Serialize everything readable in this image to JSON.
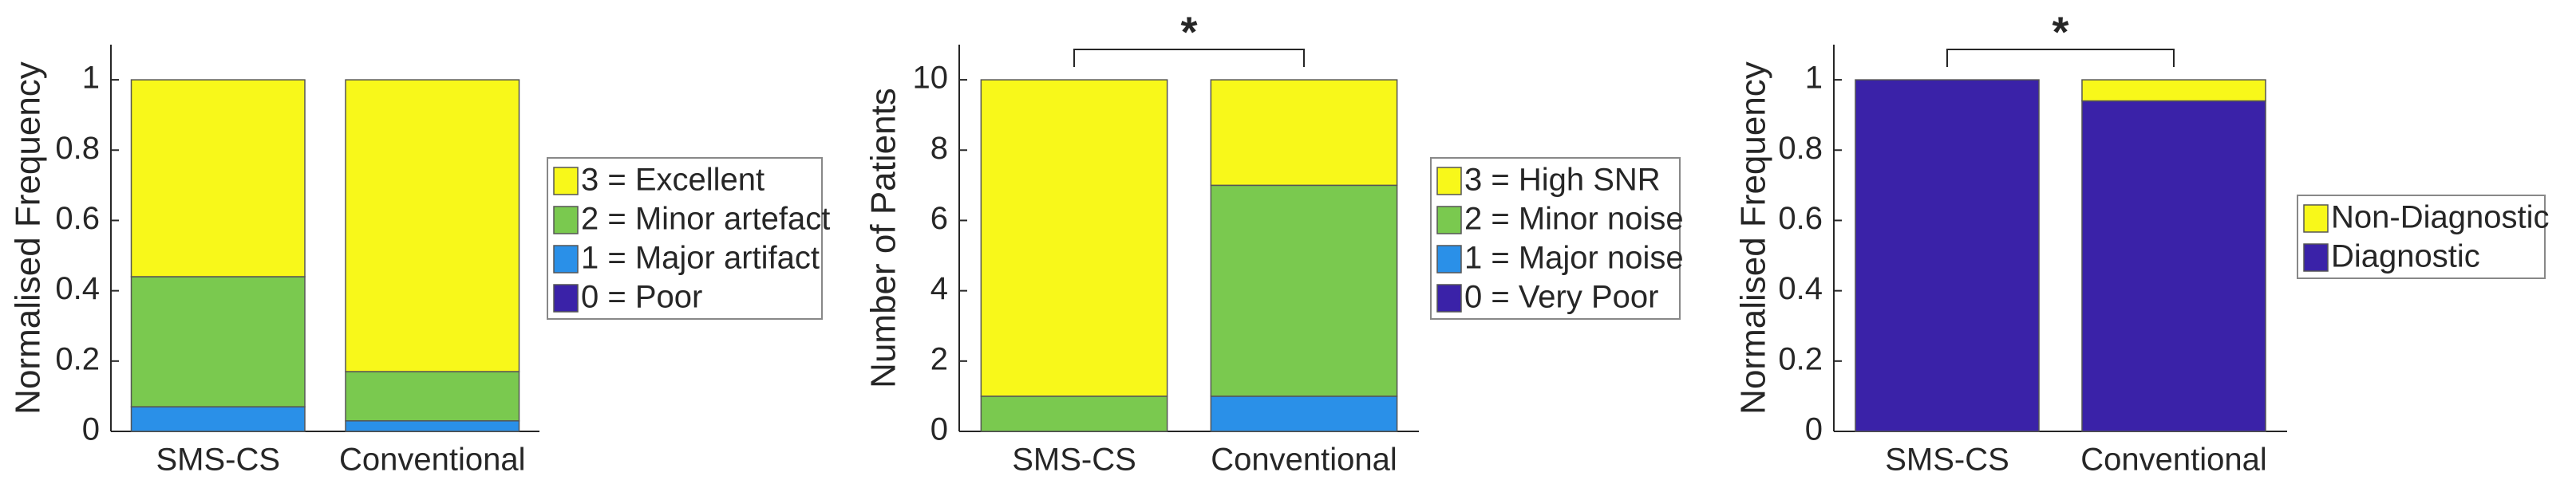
{
  "chart_data": [
    {
      "type": "bar",
      "stacked": true,
      "ylabel": "Normalised Frequency",
      "categories": [
        "SMS-CS",
        "Conventional"
      ],
      "ylim": [
        0,
        1.1
      ],
      "yticks": [
        0,
        0.2,
        0.4,
        0.6,
        0.8,
        1
      ],
      "series": [
        {
          "name": "0 = Poor",
          "color": "#3a22a8",
          "values": [
            0,
            0
          ]
        },
        {
          "name": "1 = Major artifact",
          "color": "#2a90e8",
          "values": [
            0.07,
            0.03
          ]
        },
        {
          "name": "2 = Minor artefact",
          "color": "#7ac94f",
          "values": [
            0.37,
            0.14
          ]
        },
        {
          "name": "3 = Excellent",
          "color": "#f8f81a",
          "values": [
            0.56,
            0.83
          ]
        }
      ]
    },
    {
      "type": "bar",
      "stacked": true,
      "ylabel": "Number of Patients",
      "categories": [
        "SMS-CS",
        "Conventional"
      ],
      "ylim": [
        0,
        11
      ],
      "yticks": [
        0,
        2,
        4,
        6,
        8,
        10
      ],
      "significance": "*",
      "series": [
        {
          "name": "0 = Very Poor",
          "color": "#3a22a8",
          "values": [
            0,
            0
          ]
        },
        {
          "name": "1 = Major noise",
          "color": "#2a90e8",
          "values": [
            0,
            1
          ]
        },
        {
          "name": "2 = Minor noise",
          "color": "#7ac94f",
          "values": [
            1,
            6
          ]
        },
        {
          "name": "3 = High SNR",
          "color": "#f8f81a",
          "values": [
            9,
            3
          ]
        }
      ]
    },
    {
      "type": "bar",
      "stacked": true,
      "ylabel": "Normalised Frequency",
      "categories": [
        "SMS-CS",
        "Conventional"
      ],
      "ylim": [
        0,
        1.1
      ],
      "yticks": [
        0,
        0.2,
        0.4,
        0.6,
        0.8,
        1
      ],
      "significance": "*",
      "series": [
        {
          "name": "Diagnostic",
          "color": "#3a22a8",
          "values": [
            1,
            0.94
          ]
        },
        {
          "name": "Non-Diagnostic",
          "color": "#f8f81a",
          "values": [
            0,
            0.06
          ]
        }
      ]
    }
  ]
}
